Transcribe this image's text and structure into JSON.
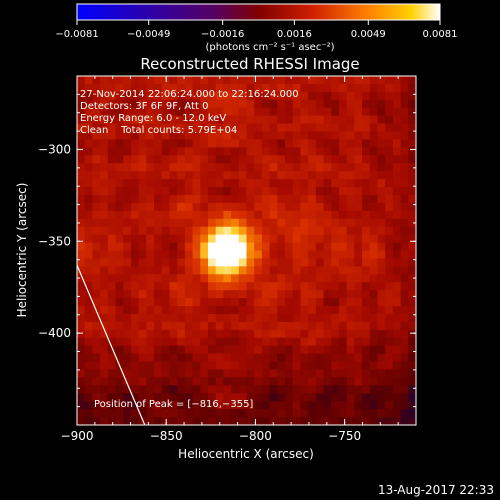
{
  "chart_data": {
    "type": "heatmap",
    "title": "Reconstructed RHESSI Image",
    "xlabel": "Heliocentric X (arcsec)",
    "ylabel": "Heliocentric Y (arcsec)",
    "xlim": [
      -900,
      -710
    ],
    "ylim": [
      -450,
      -260
    ],
    "x_ticks": [
      -900,
      -850,
      -800,
      -750
    ],
    "x_tick_labels": [
      "−900",
      "−850",
      "−800",
      "−750"
    ],
    "y_ticks": [
      -300,
      -350,
      -400
    ],
    "y_tick_labels": [
      "−300",
      "−350",
      "−400"
    ],
    "colorbar": {
      "range": [
        -0.0081,
        0.0081
      ],
      "ticks": [
        -0.0081,
        -0.0049,
        -0.0016,
        0.0016,
        0.0049,
        0.0081
      ],
      "tick_labels": [
        "−0.0081",
        "−0.0049",
        "−0.0016",
        "0.0016",
        "0.0049",
        "0.0081"
      ],
      "unit_label": "(photons cm⁻² s⁻¹ asec⁻²)",
      "colors": [
        "#0000ff",
        "#3000a0",
        "#500060",
        "#800000",
        "#d02000",
        "#ff8000",
        "#ffd000",
        "#ffffff"
      ]
    },
    "annotations": [
      "27-Nov-2014 22:06:24.000 to 22:16:24.000",
      "Detectors: 3F 6F 9F, Att 0",
      "Energy Range: 6.0 - 12.0 keV",
      "Clean    Total counts: 5.79E+04"
    ],
    "peak_label": "Position of Peak = [−816,−355]",
    "peak": {
      "x": -816,
      "y": -355
    },
    "limb_line": [
      [
        -900,
        -363
      ],
      [
        -862,
        -450
      ]
    ]
  },
  "footer": {
    "timestamp": "13-Aug-2017 22:33"
  }
}
